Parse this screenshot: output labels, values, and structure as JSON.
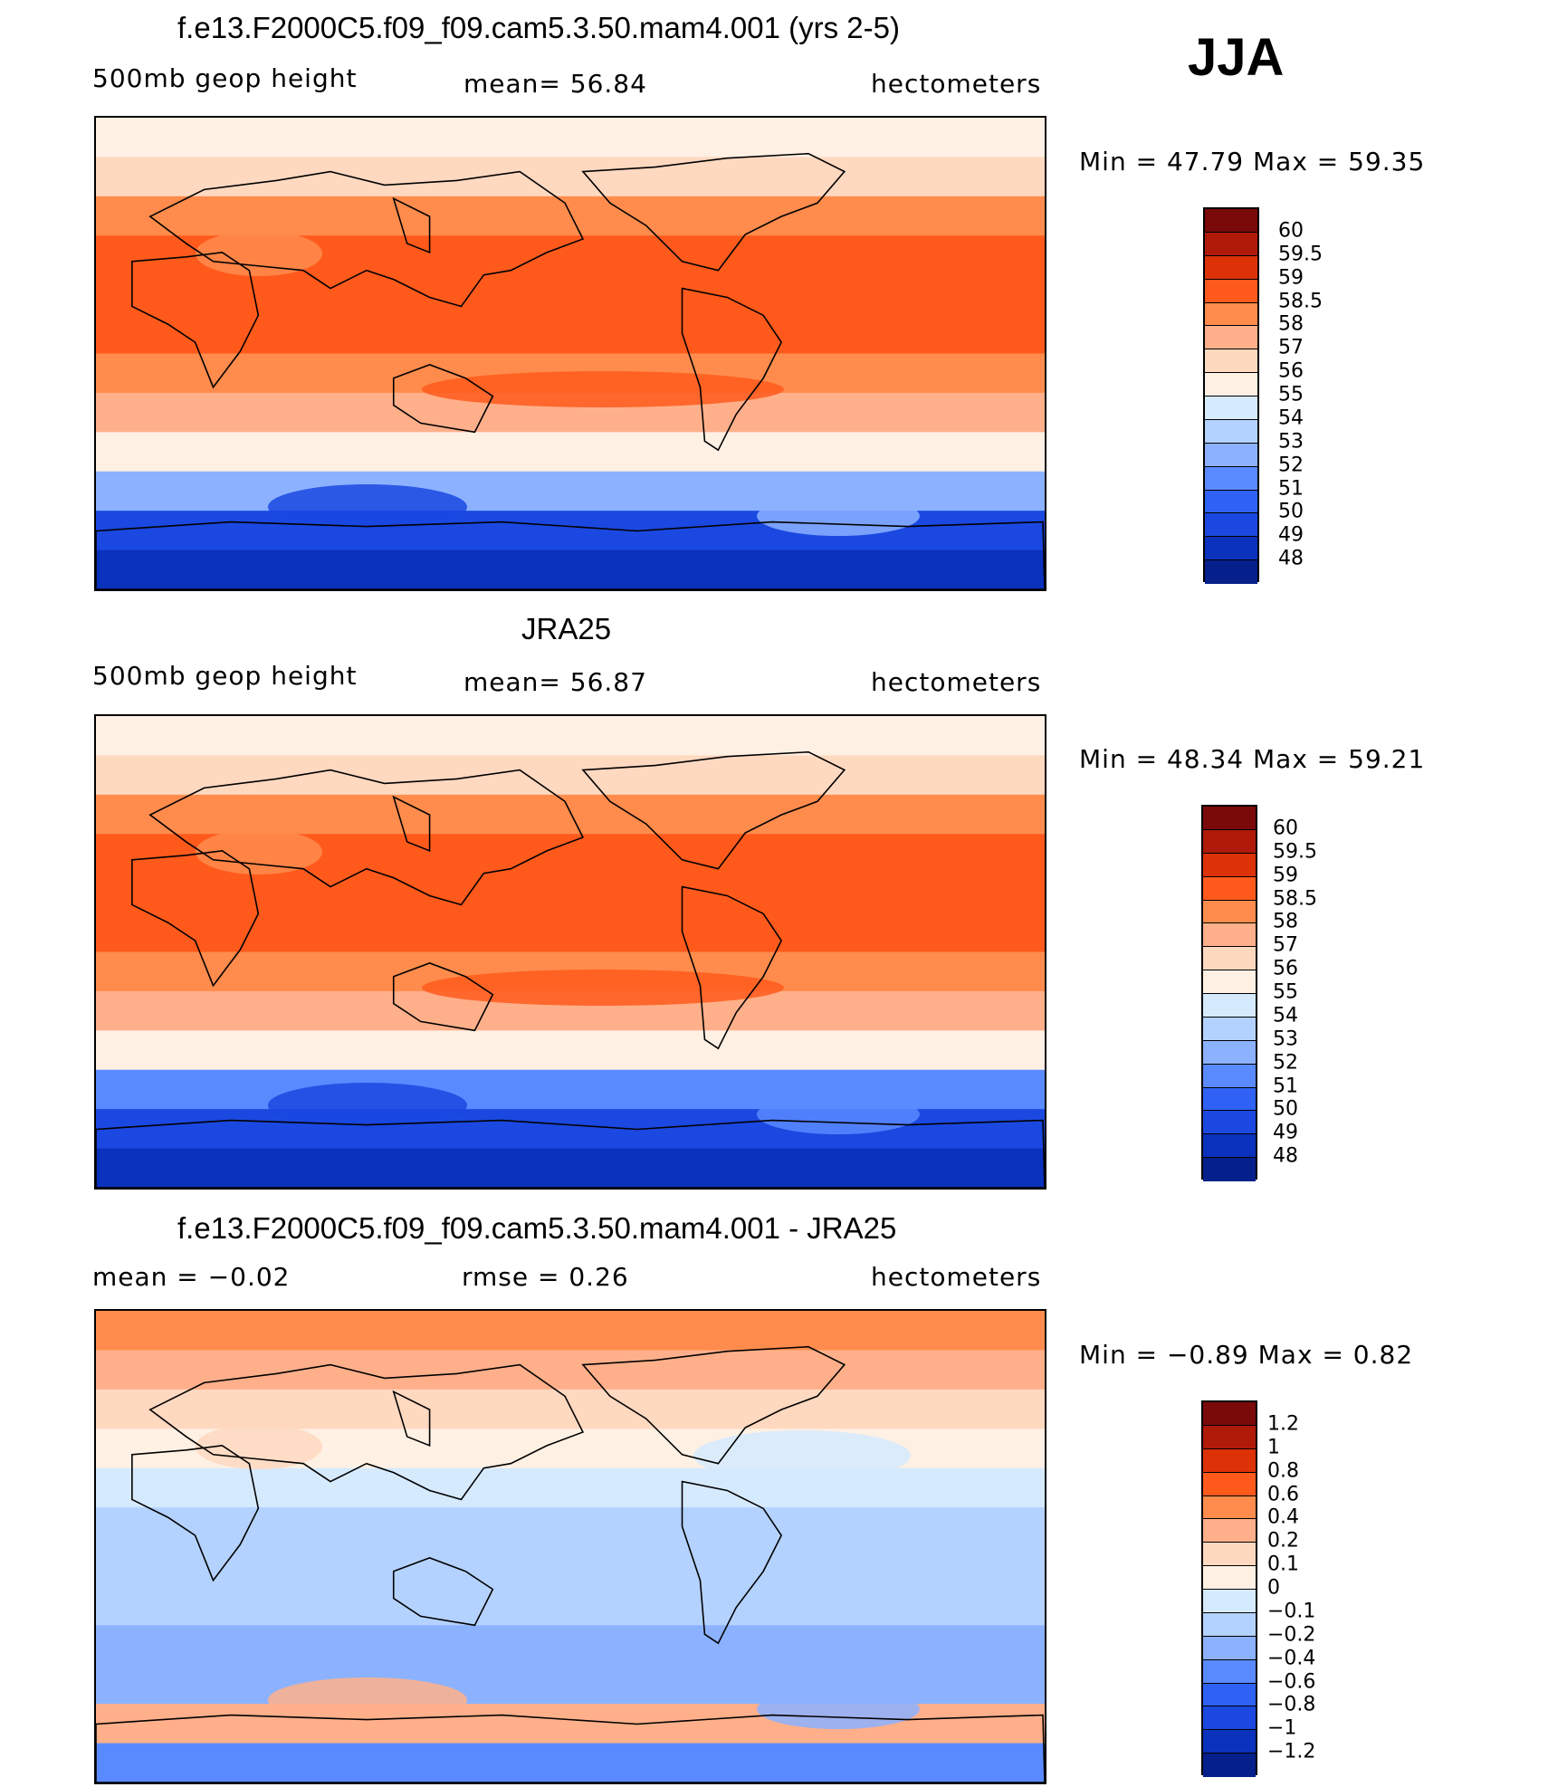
{
  "season": "JJA",
  "panels": [
    {
      "title": "f.e13.F2000C5.f09_f09.cam5.3.50.mam4.001 (yrs 2-5)",
      "left_label": "500mb geop height",
      "center_label": "mean=   56.84",
      "right_label": "hectometers",
      "minmax": "Min =   47.79  Max =   59.35",
      "colors": [
        "#7a0a0a",
        "#b01a08",
        "#dd3208",
        "#ff5a1c",
        "#ff8c4c",
        "#ffb08a",
        "#ffd8c0",
        "#fff0e4",
        "#d6eafe",
        "#b4d2ff",
        "#8cb2ff",
        "#5a8aff",
        "#2f62f4",
        "#1a48e0",
        "#0b32bd",
        "#05208a"
      ],
      "ticks": [
        "60",
        "59.5",
        "59",
        "58.5",
        "58",
        "57",
        "56",
        "55",
        "54",
        "53",
        "52",
        "51",
        "50",
        "49",
        "48"
      ],
      "field": "mean",
      "map_bands": [
        55.5,
        56.5,
        58.2,
        58.8,
        58.8,
        58.8,
        58.3,
        57.2,
        55.2,
        52.0,
        49.6,
        48.4
      ]
    },
    {
      "title": "JRA25",
      "left_label": "500mb geop height",
      "center_label": "mean=   56.87",
      "right_label": "hectometers",
      "minmax": "Min =   48.34  Max =   59.21",
      "colors": [
        "#7a0a0a",
        "#b01a08",
        "#dd3208",
        "#ff5a1c",
        "#ff8c4c",
        "#ffb08a",
        "#ffd8c0",
        "#fff0e4",
        "#d6eafe",
        "#b4d2ff",
        "#8cb2ff",
        "#5a8aff",
        "#2f62f4",
        "#1a48e0",
        "#0b32bd",
        "#05208a"
      ],
      "ticks": [
        "60",
        "59.5",
        "59",
        "58.5",
        "58",
        "57",
        "56",
        "55",
        "54",
        "53",
        "52",
        "51",
        "50",
        "49",
        "48"
      ],
      "field": "mean",
      "map_bands": [
        55.3,
        56.6,
        58.3,
        58.8,
        58.8,
        58.8,
        58.3,
        57.0,
        55.0,
        51.5,
        49.5,
        48.8
      ]
    },
    {
      "title": "f.e13.F2000C5.f09_f09.cam5.3.50.mam4.001 - JRA25",
      "left_label": "mean =   −0.02",
      "center_label": "rmse =    0.26",
      "right_label": "hectometers",
      "minmax": "Min =   −0.89  Max =     0.82",
      "colors": [
        "#7a0a0a",
        "#b01a08",
        "#dd3208",
        "#ff5a1c",
        "#ff8c4c",
        "#ffb08a",
        "#ffd8c0",
        "#fff0e4",
        "#d6eafe",
        "#b4d2ff",
        "#8cb2ff",
        "#5a8aff",
        "#2f62f4",
        "#1a48e0",
        "#0b32bd",
        "#05208a"
      ],
      "ticks": [
        "1.2",
        "1",
        "0.8",
        "0.6",
        "0.4",
        "0.2",
        "0.1",
        "0",
        "−0.1",
        "−0.2",
        "−0.4",
        "−0.6",
        "−0.8",
        "−1",
        "−1.2"
      ],
      "field": "diff",
      "map_bands": [
        0.5,
        0.3,
        0.15,
        0.0,
        -0.1,
        -0.15,
        -0.15,
        -0.2,
        -0.4,
        -0.3,
        0.2,
        -0.6
      ]
    }
  ]
}
